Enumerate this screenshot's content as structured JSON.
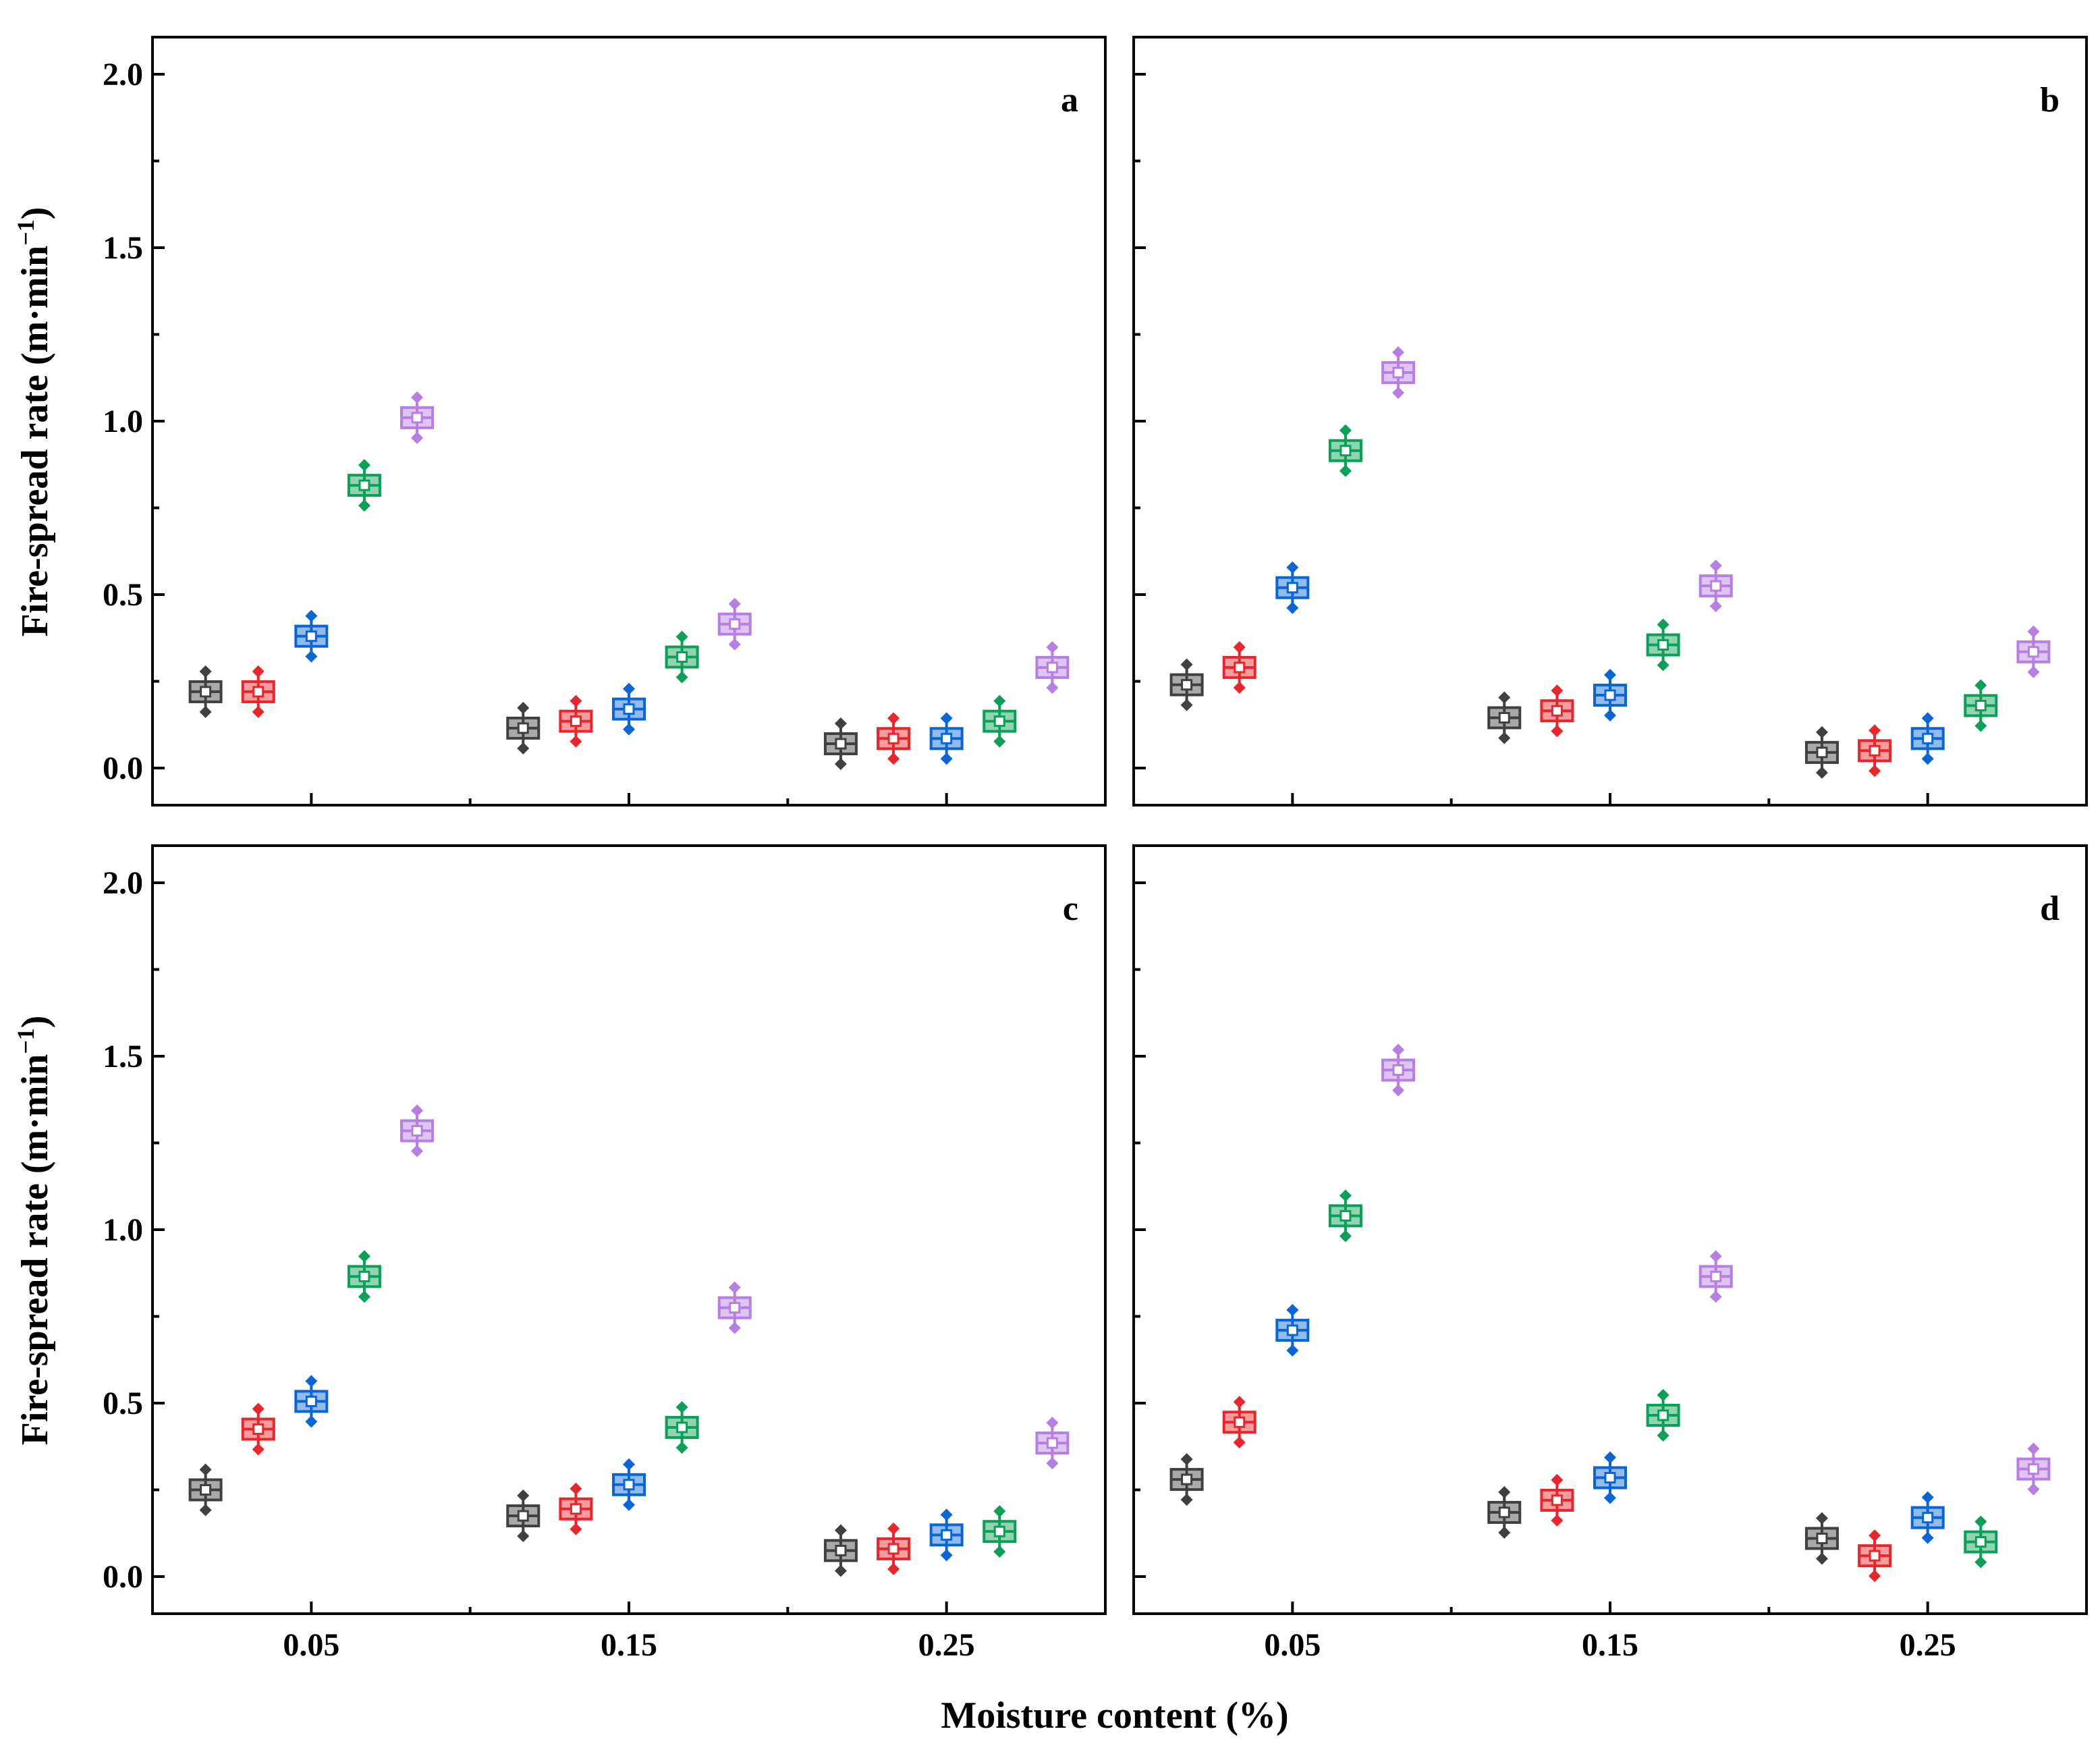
{
  "figure": {
    "xlabel": "Moisture content (%)",
    "ylabel_main": "Fire-spread rate (m·min",
    "ylabel_sup": "−1",
    "ylabel_close": ")"
  },
  "series_colors": [
    "#404040",
    "#e8262b",
    "#0a66d6",
    "#0aa055",
    "#b77ee3"
  ],
  "chart_data": [
    {
      "type": "box",
      "panel": "a",
      "categories": [
        "0.05",
        "0.15",
        "0.25"
      ],
      "ylim": [
        0.0,
        2.0
      ],
      "yticks": [
        "0.0",
        "0.5",
        "1.0",
        "1.5",
        "2.0"
      ],
      "series": [
        {
          "color_index": 0,
          "values": [
            0.22,
            0.115,
            0.07
          ]
        },
        {
          "color_index": 1,
          "values": [
            0.22,
            0.135,
            0.085
          ]
        },
        {
          "color_index": 2,
          "values": [
            0.38,
            0.17,
            0.085
          ]
        },
        {
          "color_index": 3,
          "values": [
            0.815,
            0.32,
            0.135
          ]
        },
        {
          "color_index": 4,
          "values": [
            1.01,
            0.415,
            0.29
          ]
        }
      ]
    },
    {
      "type": "box",
      "panel": "b",
      "categories": [
        "0.05",
        "0.15",
        "0.25"
      ],
      "ylim": [
        0.0,
        2.0
      ],
      "yticks": [
        "0.0",
        "0.5",
        "1.0",
        "1.5",
        "2.0"
      ],
      "series": [
        {
          "color_index": 0,
          "values": [
            0.24,
            0.145,
            0.045
          ]
        },
        {
          "color_index": 1,
          "values": [
            0.29,
            0.165,
            0.05
          ]
        },
        {
          "color_index": 2,
          "values": [
            0.52,
            0.21,
            0.085
          ]
        },
        {
          "color_index": 3,
          "values": [
            0.915,
            0.355,
            0.18
          ]
        },
        {
          "color_index": 4,
          "values": [
            1.14,
            0.525,
            0.335
          ]
        }
      ]
    },
    {
      "type": "box",
      "panel": "c",
      "categories": [
        "0.05",
        "0.15",
        "0.25"
      ],
      "ylim": [
        0.0,
        2.0
      ],
      "yticks": [
        "0.0",
        "0.5",
        "1.0",
        "1.5",
        "2.0"
      ],
      "series": [
        {
          "color_index": 0,
          "values": [
            0.25,
            0.175,
            0.075
          ]
        },
        {
          "color_index": 1,
          "values": [
            0.425,
            0.195,
            0.08
          ]
        },
        {
          "color_index": 2,
          "values": [
            0.505,
            0.265,
            0.12
          ]
        },
        {
          "color_index": 3,
          "values": [
            0.865,
            0.43,
            0.13
          ]
        },
        {
          "color_index": 4,
          "values": [
            1.285,
            0.775,
            0.385
          ]
        }
      ]
    },
    {
      "type": "box",
      "panel": "d",
      "categories": [
        "0.05",
        "0.15",
        "0.25"
      ],
      "ylim": [
        0.0,
        2.0
      ],
      "yticks": [
        "0.0",
        "0.5",
        "1.0",
        "1.5",
        "2.0"
      ],
      "series": [
        {
          "color_index": 0,
          "values": [
            0.28,
            0.185,
            0.11
          ]
        },
        {
          "color_index": 1,
          "values": [
            0.445,
            0.22,
            0.06
          ]
        },
        {
          "color_index": 2,
          "values": [
            0.71,
            0.285,
            0.17
          ]
        },
        {
          "color_index": 3,
          "values": [
            1.04,
            0.465,
            0.1
          ]
        },
        {
          "color_index": 4,
          "values": [
            1.46,
            0.865,
            0.31
          ]
        }
      ]
    }
  ]
}
